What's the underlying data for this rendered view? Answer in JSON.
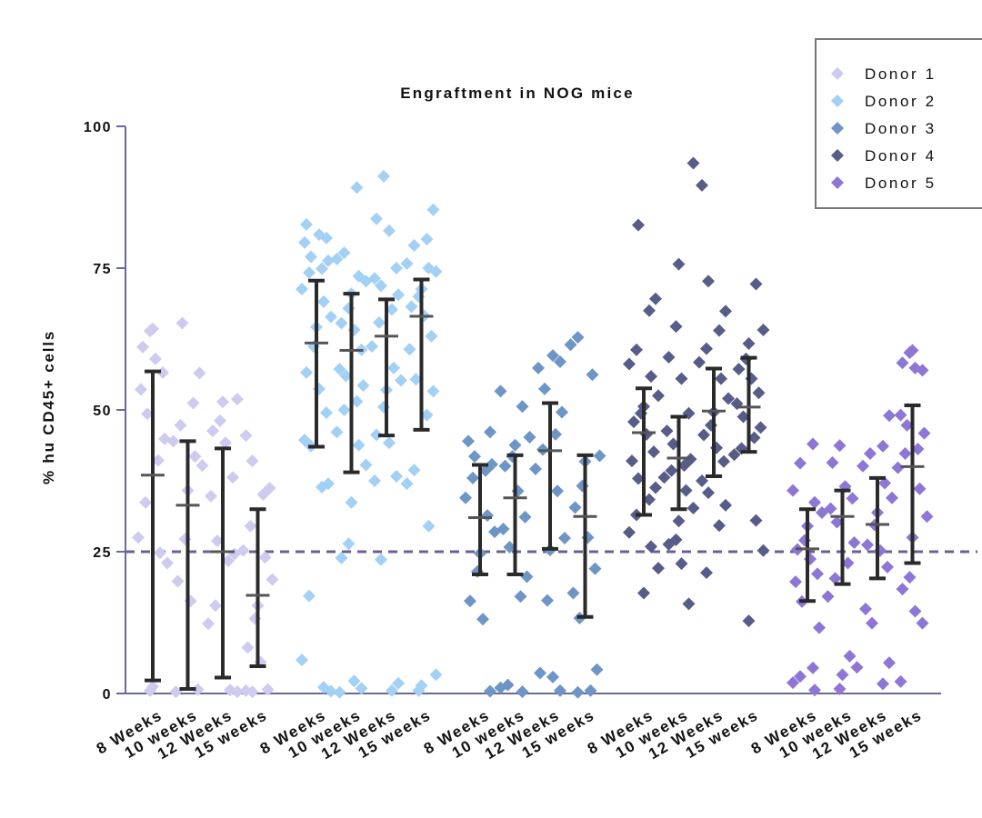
{
  "chart_data": {
    "type": "scatter",
    "title": "Engraftment in NOG mice",
    "ylabel": "% hu CD45+ cells",
    "xlabel": "",
    "ylim": [
      0,
      100
    ],
    "yticks": [
      "0",
      "25",
      "50",
      "75",
      "100"
    ],
    "reference_line": {
      "y": 25,
      "style": "dashed",
      "color": "#6b5f96"
    },
    "legend": {
      "position": "top-right",
      "entries": [
        "Donor 1",
        "Donor 2",
        "Donor 3",
        "Donor 4",
        "Donor 5"
      ]
    },
    "series": [
      {
        "name": "Donor 1",
        "color": "#cdcbf0",
        "groups": [
          {
            "label": "8 Weeks",
            "mean": 38.5,
            "sd_low": 2.3,
            "sd_high": 56.8,
            "points": [
              64.3,
              63.9,
              61.1,
              59.0,
              56.6,
              53.6,
              49.3,
              44.9,
              41.1,
              33.7,
              27.5,
              24.8,
              23.0,
              1.2,
              0.5
            ]
          },
          {
            "label": "10 weeks",
            "mean": 33.2,
            "sd_low": 0.8,
            "sd_high": 44.5,
            "points": [
              65.3,
              56.5,
              51.2,
              47.3,
              44.5,
              41.8,
              40.2,
              35.8,
              27.2,
              19.8,
              16.3,
              0.7,
              0.3
            ]
          },
          {
            "label": "12 Weeks",
            "mean": 25.0,
            "sd_low": 2.8,
            "sd_high": 43.2,
            "points": [
              51.9,
              51.4,
              48.1,
              46.3,
              44.2,
              38.1,
              34.8,
              26.9,
              24.6,
              23.4,
              15.5,
              12.3,
              0.6,
              0.3
            ]
          },
          {
            "label": "15 weeks",
            "mean": 17.3,
            "sd_low": 4.8,
            "sd_high": 32.5,
            "points": [
              45.5,
              41.0,
              36.2,
              35.1,
              29.5,
              25.2,
              24.0,
              20.1,
              15.5,
              13.2,
              8.1,
              5.5,
              0.7,
              0.5,
              0.3
            ]
          }
        ]
      },
      {
        "name": "Donor 2",
        "color": "#a3d0f5",
        "groups": [
          {
            "label": "8 Weeks",
            "mean": 61.8,
            "sd_low": 43.5,
            "sd_high": 72.8,
            "points": [
              82.7,
              80.9,
              80.3,
              79.5,
              77.0,
              76.3,
              74.9,
              74.2,
              71.3,
              69.1,
              66.4,
              64.6,
              61.2,
              56.6,
              53.7,
              49.5,
              44.7,
              43.6,
              37.0,
              36.4,
              17.2,
              5.9,
              1.1,
              0.4
            ]
          },
          {
            "label": "10 weeks",
            "mean": 60.5,
            "sd_low": 39.0,
            "sd_high": 70.5,
            "points": [
              89.2,
              77.7,
              76.6,
              73.6,
              72.7,
              70.5,
              67.9,
              65.3,
              64.1,
              60.6,
              57.2,
              56.0,
              54.3,
              51.5,
              50.0,
              46.1,
              43.8,
              40.3,
              33.7,
              26.4,
              23.9,
              2.2,
              0.9,
              0.2
            ]
          },
          {
            "label": "12 Weeks",
            "mean": 63.0,
            "sd_low": 45.5,
            "sd_high": 69.5,
            "points": [
              91.2,
              83.7,
              81.6,
              75.0,
              73.2,
              71.9,
              70.3,
              67.7,
              65.4,
              61.2,
              57.4,
              55.2,
              53.5,
              50.5,
              45.6,
              44.2,
              38.3,
              37.5,
              23.6,
              1.8,
              0.5
            ]
          },
          {
            "label": "15 weeks",
            "mean": 66.5,
            "sd_low": 46.5,
            "sd_high": 73.0,
            "points": [
              85.3,
              80.1,
              79.0,
              75.8,
              75.0,
              74.4,
              71.3,
              70.0,
              68.2,
              66.6,
              63.0,
              60.7,
              55.4,
              53.3,
              49.1,
              39.4,
              37.0,
              29.5,
              3.3,
              1.4,
              0.5
            ]
          }
        ]
      },
      {
        "name": "Donor 3",
        "color": "#6d95c6",
        "groups": [
          {
            "label": "8 Weeks",
            "mean": 31.0,
            "sd_low": 21.0,
            "sd_high": 40.3,
            "points": [
              46.1,
              44.5,
              41.8,
              40.4,
              39.3,
              38.0,
              34.5,
              31.4,
              28.5,
              24.7,
              21.5,
              16.3,
              13.1,
              0.4
            ]
          },
          {
            "label": "10 weeks",
            "mean": 34.5,
            "sd_low": 21.0,
            "sd_high": 42.0,
            "points": [
              53.3,
              50.6,
              45.2,
              43.8,
              41.8,
              40.1,
              35.7,
              31.1,
              29.0,
              25.8,
              20.6,
              17.1,
              1.5,
              1.0,
              0.3
            ]
          },
          {
            "label": "12 Weeks",
            "mean": 42.8,
            "sd_low": 25.5,
            "sd_high": 51.2,
            "points": [
              59.6,
              58.5,
              57.4,
              53.7,
              49.6,
              45.7,
              43.0,
              39.6,
              35.7,
              27.4,
              25.3,
              16.4,
              3.6,
              2.9,
              0.5
            ]
          },
          {
            "label": "15 weeks",
            "mean": 31.2,
            "sd_low": 13.5,
            "sd_high": 42.0,
            "points": [
              62.8,
              61.5,
              56.2,
              41.9,
              40.9,
              36.6,
              32.8,
              27.5,
              22.0,
              17.7,
              13.3,
              4.2,
              0.5,
              0.2
            ]
          }
        ]
      },
      {
        "name": "Donor 4",
        "color": "#575c89",
        "groups": [
          {
            "label": "8 Weeks",
            "mean": 46.0,
            "sd_low": 31.5,
            "sd_high": 53.8,
            "points": [
              82.6,
              69.6,
              67.5,
              60.6,
              58.1,
              55.9,
              52.5,
              50.6,
              49.4,
              47.9,
              45.7,
              42.6,
              41.0,
              37.9,
              36.3,
              34.2,
              31.5,
              28.4,
              25.9,
              22.1,
              17.7
            ]
          },
          {
            "label": "10 weeks",
            "mean": 41.5,
            "sd_low": 32.5,
            "sd_high": 48.8,
            "points": [
              93.5,
              75.7,
              64.7,
              59.3,
              55.5,
              49.4,
              46.3,
              44.0,
              41.3,
              40.2,
              39.3,
              38.1,
              35.8,
              32.7,
              30.4,
              27.1,
              26.3,
              22.9,
              15.8
            ]
          },
          {
            "label": "12 Weeks",
            "mean": 49.8,
            "sd_low": 38.3,
            "sd_high": 57.3,
            "points": [
              89.6,
              72.7,
              67.4,
              64.0,
              60.8,
              58.4,
              55.5,
              52.0,
              49.6,
              47.3,
              45.6,
              43.3,
              40.9,
              37.5,
              35.4,
              33.2,
              29.6,
              21.3
            ]
          },
          {
            "label": "15 weeks",
            "mean": 50.5,
            "sd_low": 42.6,
            "sd_high": 59.2,
            "points": [
              72.2,
              64.1,
              61.7,
              59.0,
              57.2,
              55.5,
              53.0,
              51.1,
              48.8,
              46.9,
              45.1,
              43.2,
              42.1,
              30.5,
              25.2,
              12.8
            ]
          }
        ]
      },
      {
        "name": "Donor 5",
        "color": "#8e76d6",
        "groups": [
          {
            "label": "8 Weeks",
            "mean": 25.5,
            "sd_low": 16.3,
            "sd_high": 32.5,
            "points": [
              44.0,
              40.6,
              35.8,
              33.7,
              31.9,
              29.5,
              27.0,
              25.4,
              23.7,
              21.1,
              19.7,
              16.2,
              11.6,
              4.5,
              3.0,
              1.9,
              0.6
            ]
          },
          {
            "label": "10 weeks",
            "mean": 31.2,
            "sd_low": 19.3,
            "sd_high": 35.8,
            "points": [
              43.7,
              40.7,
              36.5,
              34.4,
              32.6,
              30.2,
              26.6,
              23.0,
              20.3,
              17.1,
              6.6,
              4.6,
              3.3,
              0.8
            ]
          },
          {
            "label": "12 Weeks",
            "mean": 29.8,
            "sd_low": 20.3,
            "sd_high": 38.0,
            "points": [
              49.0,
              43.6,
              42.3,
              40.1,
              37.1,
              34.5,
              31.9,
              29.7,
              26.2,
              25.2,
              22.3,
              14.9,
              12.4,
              5.4,
              1.7
            ]
          },
          {
            "label": "15 weeks",
            "mean": 40.0,
            "sd_low": 23.0,
            "sd_high": 50.8,
            "points": [
              60.5,
              60.1,
              58.3,
              57.4,
              57.0,
              49.1,
              47.3,
              45.9,
              43.1,
              42.3,
              39.8,
              36.1,
              31.2,
              27.5,
              20.5,
              18.4,
              14.5,
              12.4,
              2.1
            ]
          }
        ]
      }
    ]
  }
}
